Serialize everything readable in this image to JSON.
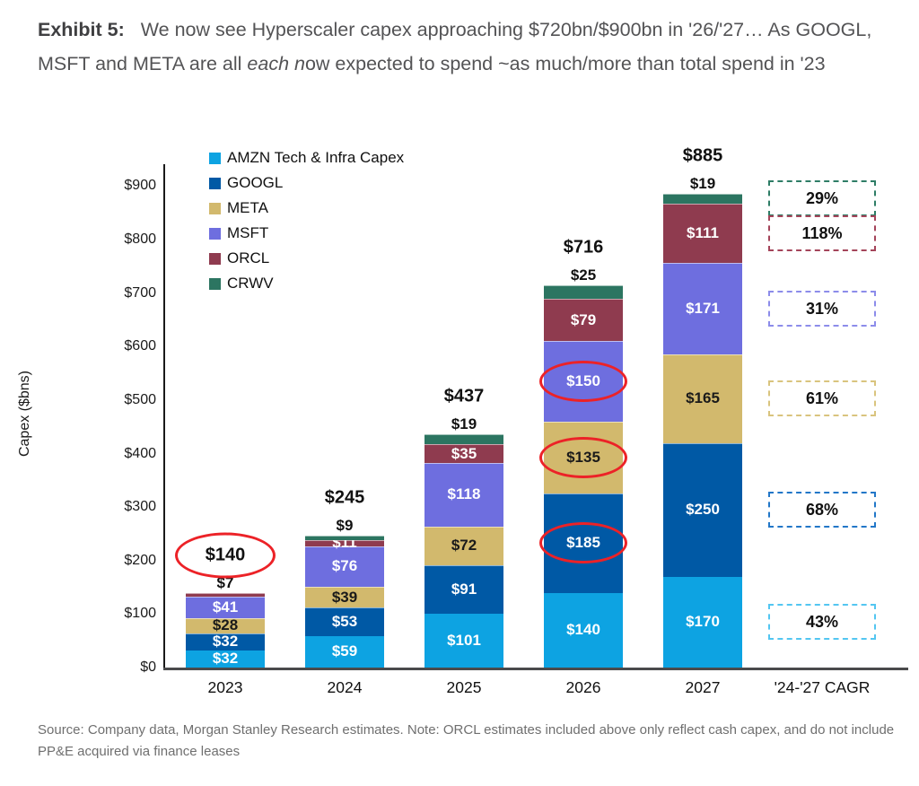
{
  "title": {
    "label": "Exhibit 5:",
    "text_before_italic": "We now see Hyperscaler capex approaching $720bn/$900bn in '26/'27… As GOOGL, MSFT and META are all ",
    "italic": "each n",
    "text_after_italic": "ow expected to spend ~as much/more than total spend in '23"
  },
  "chart_data": {
    "type": "bar",
    "stacked": true,
    "ylabel": "Capex ($bns)",
    "ylim": [
      0,
      941
    ],
    "grid": false,
    "legend_position": "top-left",
    "yticks": [
      0,
      100,
      200,
      300,
      400,
      500,
      600,
      700,
      800,
      900
    ],
    "ytick_labels": [
      "$0",
      "$100",
      "$200",
      "$300",
      "$400",
      "$500",
      "$600",
      "$700",
      "$800",
      "$900"
    ],
    "categories": [
      "2023",
      "2024",
      "2025",
      "2026",
      "2027"
    ],
    "cagr_category": "'24-'27 CAGR",
    "legend": [
      {
        "company": "AMZN",
        "label": "AMZN Tech & Infra Capex"
      },
      {
        "company": "GOOGL",
        "label": "GOOGL"
      },
      {
        "company": "META",
        "label": "META"
      },
      {
        "company": "MSFT",
        "label": "MSFT"
      },
      {
        "company": "ORCL",
        "label": "ORCL"
      },
      {
        "company": "CRWV",
        "label": "CRWV"
      }
    ],
    "years": [
      {
        "year": "2023",
        "total_value": 140,
        "total_label": "$140",
        "total_circled": true,
        "segments": [
          {
            "company": "AMZN",
            "value": 32,
            "label": "$32"
          },
          {
            "company": "GOOGL",
            "value": 32,
            "label": "$32"
          },
          {
            "company": "META",
            "value": 28,
            "label": "$28"
          },
          {
            "company": "MSFT",
            "value": 41,
            "label": "$41"
          },
          {
            "company": "ORCL",
            "value": 7,
            "label": "$7",
            "label_above": true
          }
        ]
      },
      {
        "year": "2024",
        "total_value": 245,
        "total_label": "$245",
        "total_circled": false,
        "segments": [
          {
            "company": "AMZN",
            "value": 59,
            "label": "$59"
          },
          {
            "company": "GOOGL",
            "value": 53,
            "label": "$53"
          },
          {
            "company": "META",
            "value": 39,
            "label": "$39"
          },
          {
            "company": "MSFT",
            "value": 76,
            "label": "$76"
          },
          {
            "company": "ORCL",
            "value": 11,
            "label": "$11"
          },
          {
            "company": "CRWV",
            "value": 9,
            "label": "$9",
            "label_above": true
          }
        ]
      },
      {
        "year": "2025",
        "total_value": 437,
        "total_label": "$437",
        "total_circled": false,
        "segments": [
          {
            "company": "AMZN",
            "value": 101,
            "label": "$101"
          },
          {
            "company": "GOOGL",
            "value": 91,
            "label": "$91"
          },
          {
            "company": "META",
            "value": 72,
            "label": "$72"
          },
          {
            "company": "MSFT",
            "value": 118,
            "label": "$118"
          },
          {
            "company": "ORCL",
            "value": 35,
            "label": "$35"
          },
          {
            "company": "CRWV",
            "value": 19,
            "label": "$19",
            "label_above": true
          }
        ]
      },
      {
        "year": "2026",
        "total_value": 716,
        "total_label": "$716",
        "total_circled": false,
        "segments": [
          {
            "company": "AMZN",
            "value": 140,
            "label": "$140"
          },
          {
            "company": "GOOGL",
            "value": 185,
            "label": "$185",
            "circled": true
          },
          {
            "company": "META",
            "value": 135,
            "label": "$135",
            "circled": true
          },
          {
            "company": "MSFT",
            "value": 150,
            "label": "$150",
            "circled": true
          },
          {
            "company": "ORCL",
            "value": 79,
            "label": "$79"
          },
          {
            "company": "CRWV",
            "value": 25,
            "label": "$25",
            "label_above": true
          }
        ]
      },
      {
        "year": "2027",
        "total_value": 885,
        "total_label": "$885",
        "total_circled": false,
        "segments": [
          {
            "company": "AMZN",
            "value": 170,
            "label": "$170"
          },
          {
            "company": "GOOGL",
            "value": 250,
            "label": "$250"
          },
          {
            "company": "META",
            "value": 165,
            "label": "$165"
          },
          {
            "company": "MSFT",
            "value": 171,
            "label": "$171"
          },
          {
            "company": "ORCL",
            "value": 111,
            "label": "$111"
          },
          {
            "company": "CRWV",
            "value": 19,
            "label": "$19",
            "label_above": true
          }
        ]
      }
    ],
    "cagr_boxes": [
      {
        "company": "CRWV",
        "label": "29%"
      },
      {
        "company": "ORCL",
        "label": "118%"
      },
      {
        "company": "MSFT",
        "label": "31%"
      },
      {
        "company": "META",
        "label": "61%"
      },
      {
        "company": "GOOGL",
        "label": "68%"
      },
      {
        "company": "AMZN",
        "label": "43%"
      }
    ]
  },
  "colors": {
    "series": {
      "AMZN": "#0DA3E2",
      "GOOGL": "#0059A5",
      "META": "#D2B96D",
      "MSFT": "#6E6EDF",
      "ORCL": "#8F3B4F",
      "CRWV": "#2C7561"
    },
    "series_text": {
      "AMZN": "#FFFFFF",
      "GOOGL": "#FFFFFF",
      "META": "#1A1A1A",
      "MSFT": "#FFFFFF",
      "ORCL": "#FFFFFF",
      "CRWV": "#1A1A1A"
    },
    "cagr_borders": {
      "AMZN": "#53C6F1",
      "GOOGL": "#2277C8",
      "META": "#D9C47E",
      "MSFT": "#8C8CEA",
      "ORCL": "#A4445A",
      "CRWV": "#2E7D66"
    },
    "annotation_red": "#EC2227",
    "axis": "#1A1A1A"
  },
  "source_note": "Source: Company data, Morgan Stanley Research estimates. Note: ORCL estimates included above only reflect cash capex, and do not include PP&E acquired via finance leases"
}
